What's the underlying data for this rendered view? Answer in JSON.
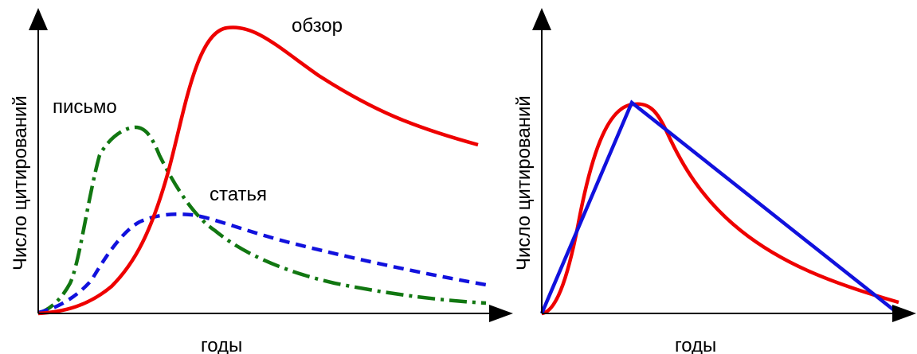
{
  "left_panel": {
    "y_axis_label": "Число цитирований",
    "x_axis_label": "годы",
    "curves": [
      {
        "key": "review",
        "label": "обзор",
        "color": "#ee0000",
        "style": "solid"
      },
      {
        "key": "letter",
        "label": "письмо",
        "color": "#117711",
        "style": "dash-dot"
      },
      {
        "key": "article",
        "label": "статья",
        "color": "#1111dd",
        "style": "dashed"
      }
    ]
  },
  "right_panel": {
    "y_axis_label": "Число цитирований",
    "x_axis_label": "годы",
    "curves": [
      {
        "key": "smooth",
        "color": "#ee0000",
        "style": "solid"
      },
      {
        "key": "triangular",
        "color": "#1111dd",
        "style": "solid"
      }
    ]
  }
}
